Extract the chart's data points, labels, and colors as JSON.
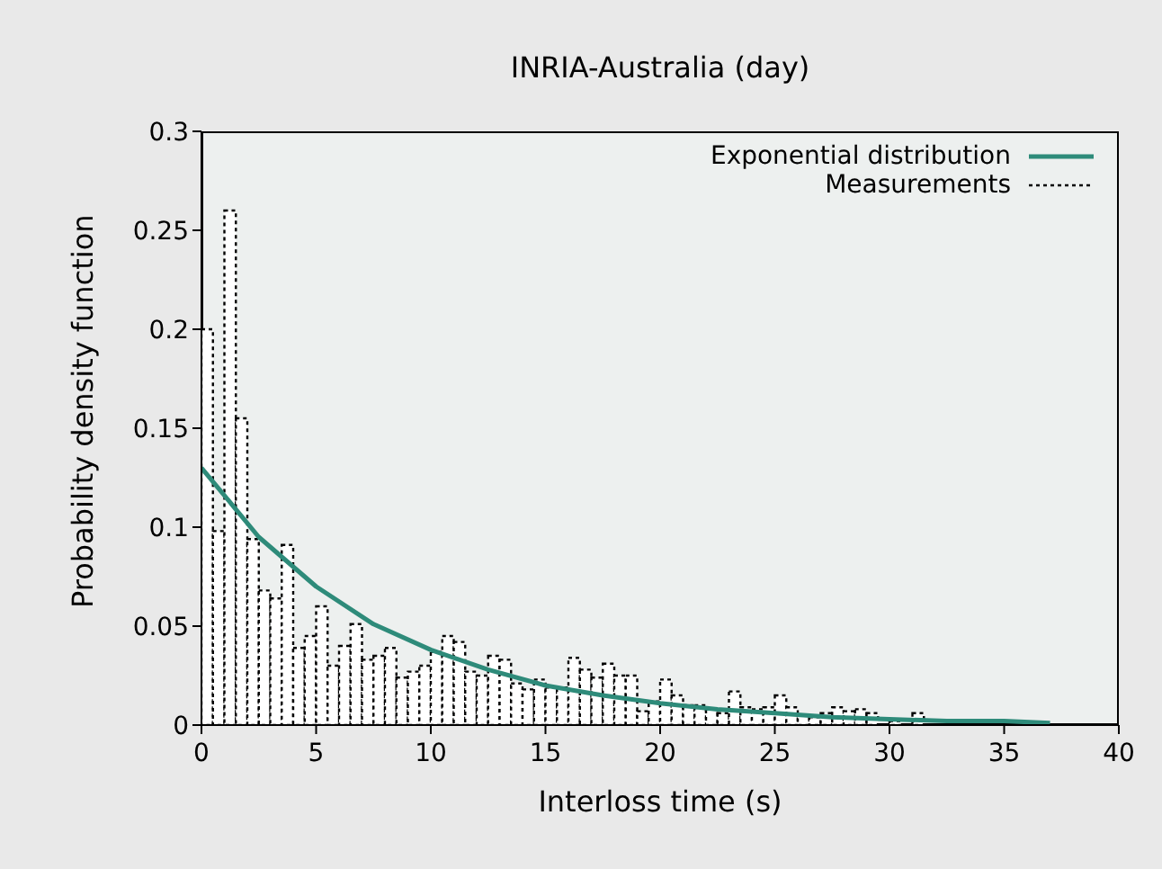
{
  "chart_data": {
    "type": "histogram",
    "title": "INRIA-Australia (day)",
    "xlabel": "Interloss time (s)",
    "ylabel": "Probability density function",
    "xlim": [
      0,
      40
    ],
    "xticks": [
      0,
      5,
      10,
      15,
      20,
      25,
      30,
      35,
      40
    ],
    "ylim": [
      0,
      0.3
    ],
    "yticks": [
      0,
      0.05,
      0.1,
      0.15,
      0.2,
      0.25,
      0.3
    ],
    "legend": "top right",
    "grid": false,
    "series": [
      {
        "name": "Exponential distribution",
        "type": "line",
        "color": "#2e8b7a",
        "line_style": "solid",
        "marker": "none",
        "x": [
          0,
          2.5,
          5,
          7.5,
          10,
          12.5,
          15,
          17.5,
          20,
          22.5,
          25,
          27.5,
          30,
          32.5,
          35,
          37
        ],
        "values": [
          0.13,
          0.095,
          0.07,
          0.051,
          0.038,
          0.028,
          0.02,
          0.015,
          0.011,
          0.008,
          0.006,
          0.004,
          0.003,
          0.002,
          0.002,
          0.001
        ]
      },
      {
        "name": "Measurements",
        "color": "#000000",
        "line_style": "dotted",
        "bins": [
          0,
          0.5,
          1,
          1.5,
          2,
          2.5,
          3,
          3.5,
          4,
          4.5,
          5,
          5.5,
          6,
          6.5,
          7,
          7.5,
          8,
          8.5,
          9,
          9.5,
          10,
          10.5,
          11,
          11.5,
          12,
          12.5,
          13,
          13.5,
          14,
          14.5,
          15,
          15.5,
          16,
          16.5,
          17,
          17.5,
          18,
          18.5,
          19,
          19.5,
          20,
          20.5,
          21,
          21.5,
          22,
          22.5,
          23,
          23.5,
          24,
          24.5,
          25,
          25.5,
          26,
          26.5,
          27,
          27.5,
          28,
          28.5,
          29,
          29.5,
          30,
          30.5,
          31,
          31.5
        ],
        "values": [
          0.2,
          0.098,
          0.26,
          0.155,
          0.094,
          0.068,
          0.064,
          0.091,
          0.039,
          0.045,
          0.06,
          0.03,
          0.04,
          0.051,
          0.033,
          0.035,
          0.039,
          0.024,
          0.027,
          0.03,
          0.037,
          0.045,
          0.042,
          0.027,
          0.025,
          0.035,
          0.033,
          0.021,
          0.018,
          0.023,
          0.019,
          0.019,
          0.034,
          0.028,
          0.024,
          0.031,
          0.025,
          0.025,
          0.007,
          0.012,
          0.023,
          0.015,
          0.01,
          0.01,
          0.008,
          0.006,
          0.017,
          0.009,
          0.008,
          0.009,
          0.015,
          0.009,
          0.005,
          0.004,
          0.006,
          0.009,
          0.007,
          0.008,
          0.006,
          null,
          0.002,
          null,
          0.006
        ]
      }
    ]
  }
}
